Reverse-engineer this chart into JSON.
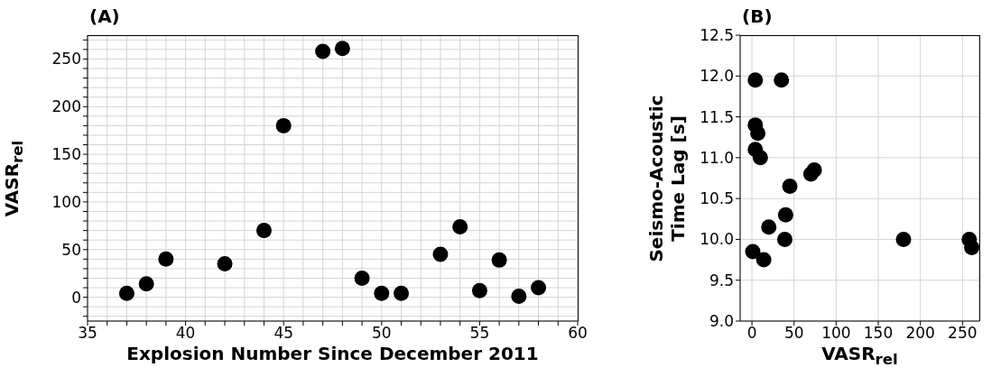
{
  "chart_data": [
    {
      "type": "scatter",
      "title": "(A)",
      "xlabel": "Explosion Number Since December 2011",
      "ylabel": "VASR$_{rel}$",
      "color": "#000000",
      "marker": "circle",
      "grid": true,
      "x": [
        37,
        38,
        39,
        42,
        44,
        45,
        47,
        48,
        49,
        50,
        51,
        53,
        54,
        55,
        56,
        57,
        58
      ],
      "values": [
        4,
        14,
        40,
        35,
        70,
        180,
        258,
        261,
        20,
        4,
        4,
        45,
        74,
        7,
        39,
        1,
        10
      ],
      "xlim": [
        35,
        60
      ],
      "xticks": [
        35,
        {
          "value": 36,
          "label": null
        },
        {
          "value": 37,
          "label": null
        },
        {
          "value": 38,
          "label": null
        },
        {
          "value": 39,
          "label": null
        },
        40,
        {
          "value": 41,
          "label": null
        },
        {
          "value": 42,
          "label": null
        },
        {
          "value": 43,
          "label": null
        },
        {
          "value": 44,
          "label": null
        },
        45,
        {
          "value": 46,
          "label": null
        },
        {
          "value": 47,
          "label": null
        },
        {
          "value": 48,
          "label": null
        },
        {
          "value": 49,
          "label": null
        },
        50,
        {
          "value": 51,
          "label": null
        },
        {
          "value": 52,
          "label": null
        },
        {
          "value": 53,
          "label": null
        },
        {
          "value": 54,
          "label": null
        },
        55,
        {
          "value": 56,
          "label": null
        },
        {
          "value": 57,
          "label": null
        },
        {
          "value": 58,
          "label": null
        },
        {
          "value": 59,
          "label": null
        },
        60
      ],
      "ylim": [
        -25,
        275
      ],
      "yticks": [
        {
          "value": -20,
          "label": null
        },
        {
          "value": -10,
          "label": null
        },
        0,
        {
          "value": 10,
          "label": null
        },
        {
          "value": 20,
          "label": null
        },
        {
          "value": 30,
          "label": null
        },
        {
          "value": 40,
          "label": null
        },
        50,
        {
          "value": 60,
          "label": null
        },
        {
          "value": 70,
          "label": null
        },
        {
          "value": 80,
          "label": null
        },
        {
          "value": 90,
          "label": null
        },
        100,
        {
          "value": 110,
          "label": null
        },
        {
          "value": 120,
          "label": null
        },
        {
          "value": 130,
          "label": null
        },
        {
          "value": 140,
          "label": null
        },
        150,
        {
          "value": 160,
          "label": null
        },
        {
          "value": 170,
          "label": null
        },
        {
          "value": 180,
          "label": null
        },
        {
          "value": 190,
          "label": null
        },
        200,
        {
          "value": 210,
          "label": null
        },
        {
          "value": 220,
          "label": null
        },
        {
          "value": 230,
          "label": null
        },
        {
          "value": 240,
          "label": null
        },
        250,
        {
          "value": 260,
          "label": null
        },
        {
          "value": 270,
          "label": null
        }
      ]
    },
    {
      "type": "scatter",
      "title": "(B)",
      "xlabel": "VASR$_{rel}$",
      "ylabel": "Seismo-Acoustic\nTime Lag [s]",
      "color": "#000000",
      "marker": "circle",
      "grid": true,
      "x": [
        4,
        35,
        4,
        7,
        4,
        10,
        70,
        74,
        45,
        40,
        20,
        39,
        1,
        14,
        180,
        258,
        261
      ],
      "values": [
        11.95,
        11.95,
        11.4,
        11.3,
        11.1,
        11.0,
        10.8,
        10.85,
        10.65,
        10.3,
        10.15,
        10.0,
        9.85,
        9.75,
        10.0,
        10.0,
        9.9
      ],
      "xlim": [
        -14,
        270
      ],
      "xticks": [
        0,
        50,
        100,
        150,
        200,
        250
      ],
      "ylim": [
        9.0,
        12.5
      ],
      "yticks": [
        {
          "value": 9.0,
          "label": "9.0"
        },
        {
          "value": 9.5,
          "label": "9.5"
        },
        {
          "value": 10.0,
          "label": "10.0"
        },
        {
          "value": 10.5,
          "label": "10.5"
        },
        {
          "value": 11.0,
          "label": "11.0"
        },
        {
          "value": 11.5,
          "label": "11.5"
        },
        {
          "value": 12.0,
          "label": "12.0"
        },
        {
          "value": 12.5,
          "label": "12.5"
        }
      ]
    }
  ]
}
